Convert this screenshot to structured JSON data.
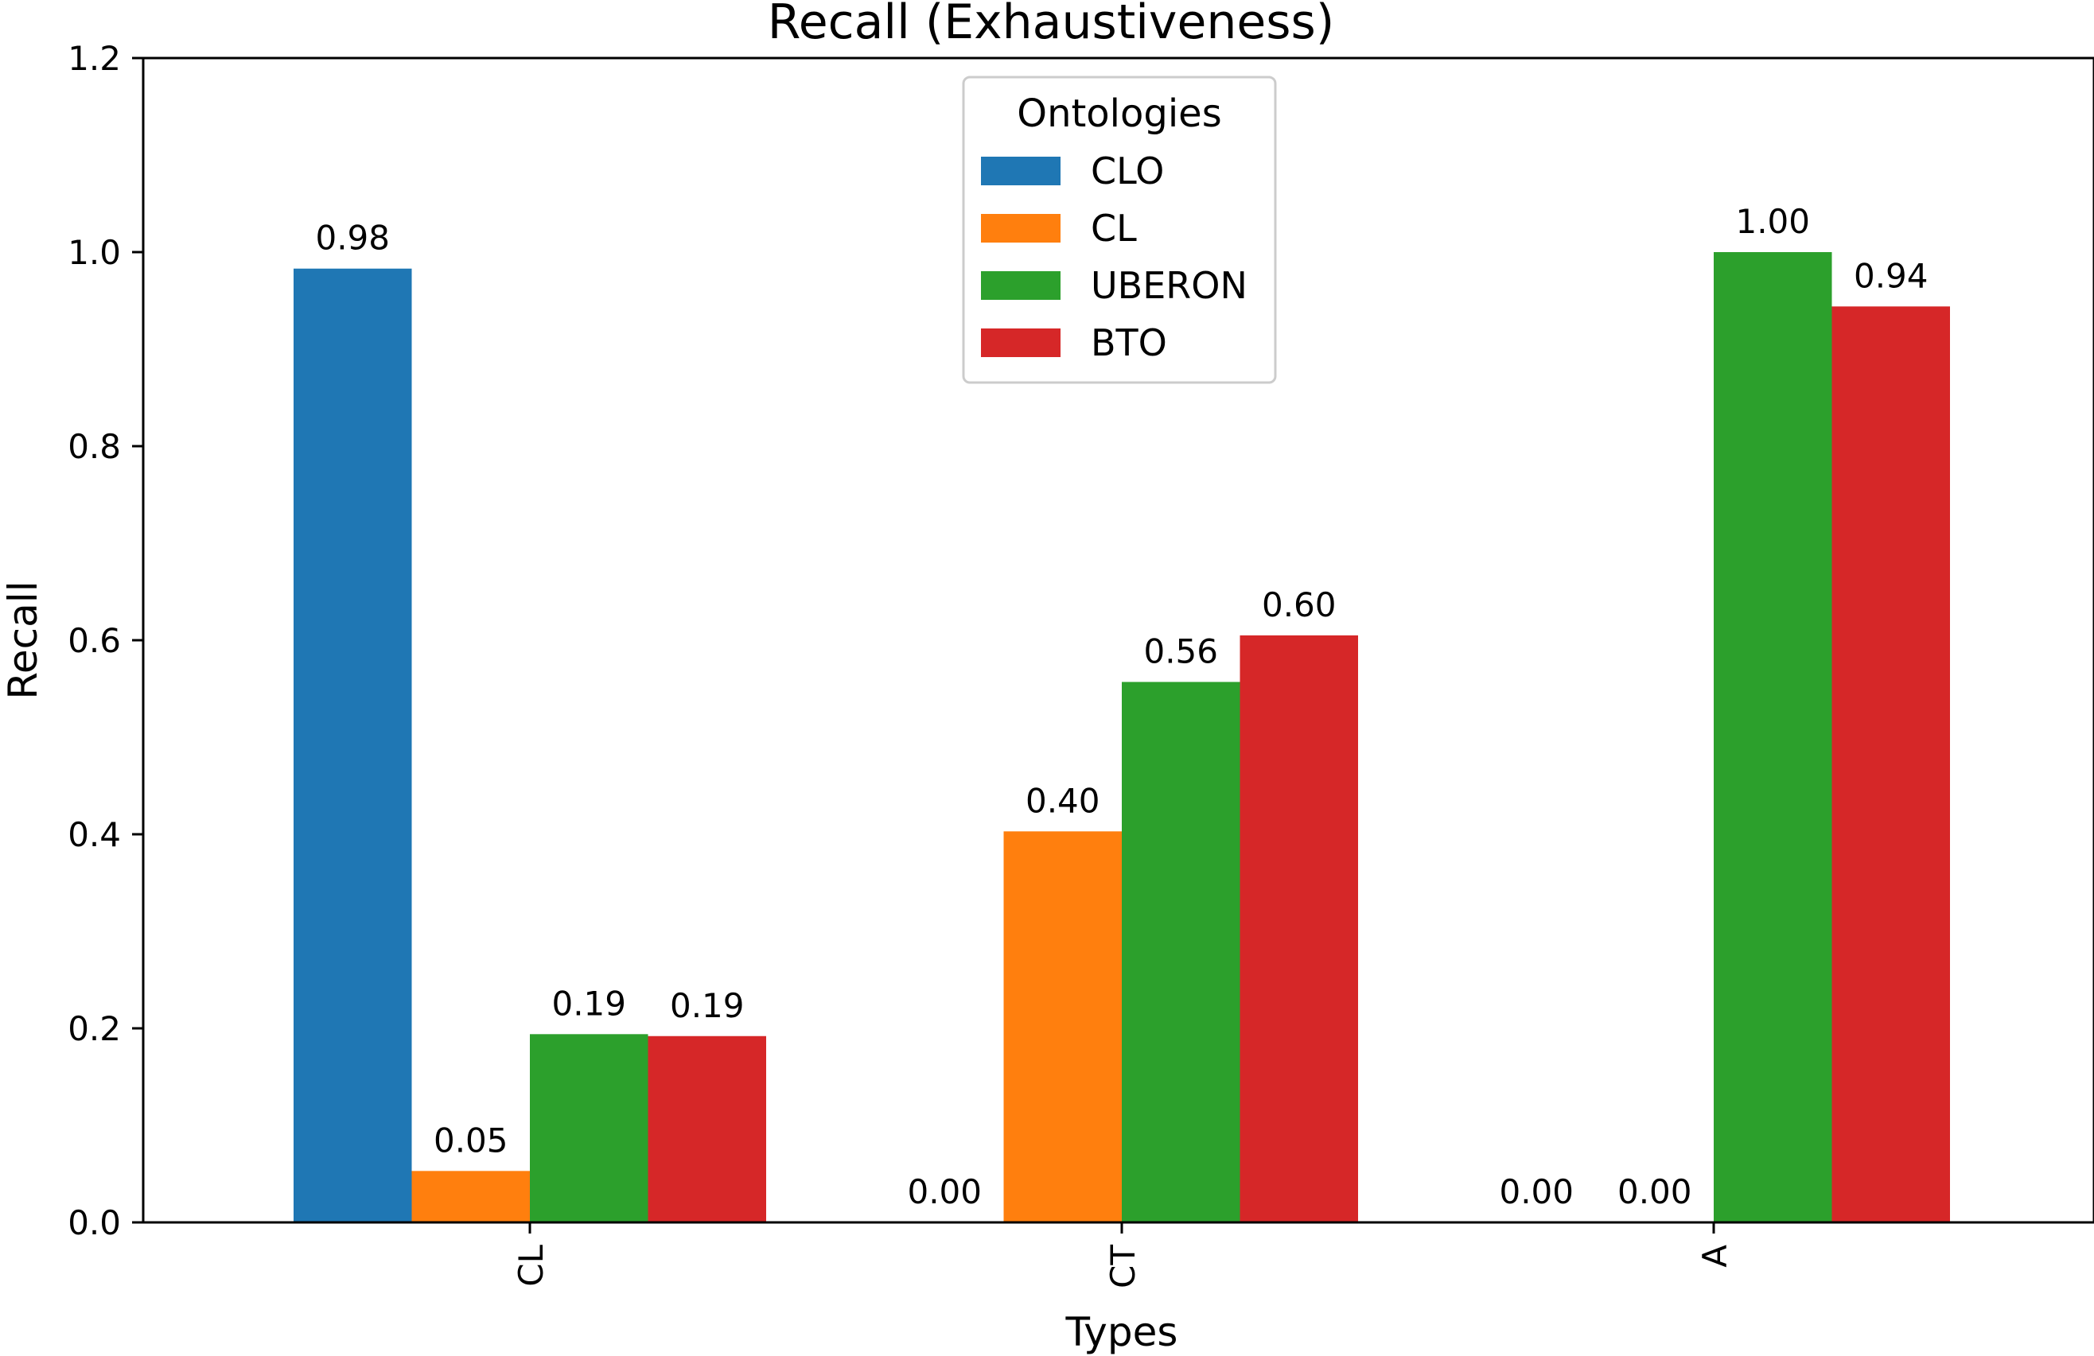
{
  "chart_data": {
    "type": "bar",
    "title": "Recall (Exhaustiveness)",
    "xlabel": "Types",
    "ylabel": "Recall",
    "categories": [
      "CL",
      "CT",
      "A"
    ],
    "ylim": [
      0,
      1.2
    ],
    "yticks": [
      "0.0",
      "0.2",
      "0.4",
      "0.6",
      "0.8",
      "1.0",
      "1.2"
    ],
    "legend": {
      "title": "Ontologies",
      "placement": "top-center"
    },
    "series": [
      {
        "name": "CLO",
        "color": "#1f77b4",
        "values": [
          0.983,
          0.0,
          0.0
        ],
        "labels": [
          "0.98",
          "0.00",
          "0.00"
        ]
      },
      {
        "name": "CL",
        "color": "#ff7f0e",
        "values": [
          0.053,
          0.403,
          0.0
        ],
        "labels": [
          "0.05",
          "0.40",
          "0.00"
        ]
      },
      {
        "name": "UBERON",
        "color": "#2ca02c",
        "values": [
          0.194,
          0.557,
          1.0
        ],
        "labels": [
          "0.19",
          "0.56",
          "1.00"
        ]
      },
      {
        "name": "BTO",
        "color": "#d62728",
        "values": [
          0.192,
          0.605,
          0.944
        ],
        "labels": [
          "0.19",
          "0.60",
          "0.94"
        ]
      }
    ],
    "grid": false
  }
}
